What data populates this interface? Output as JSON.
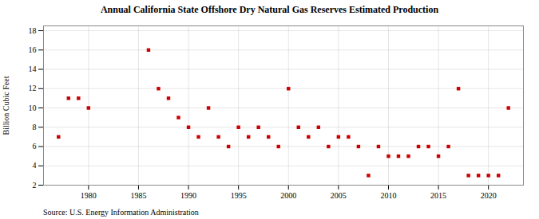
{
  "chart_data": {
    "type": "scatter",
    "title": "Annual California State Offshore Dry Natural Gas Reserves Estimated Production",
    "ylabel": "Billion Cubic Feet",
    "source": "Source: U.S. Energy Information Administration",
    "x": [
      1977,
      1978,
      1979,
      1980,
      1986,
      1987,
      1988,
      1989,
      1990,
      1991,
      1992,
      1993,
      1994,
      1995,
      1996,
      1997,
      1998,
      1999,
      2000,
      2001,
      2002,
      2003,
      2004,
      2005,
      2006,
      2007,
      2008,
      2009,
      2010,
      2011,
      2012,
      2013,
      2014,
      2015,
      2016,
      2017,
      2018,
      2019,
      2020,
      2021,
      2022
    ],
    "values": [
      7,
      11,
      11,
      10,
      16,
      12,
      11,
      9,
      8,
      7,
      10,
      7,
      6,
      8,
      7,
      8,
      7,
      6,
      12,
      8,
      7,
      8,
      6,
      7,
      7,
      6,
      3,
      6,
      5,
      5,
      5,
      6,
      6,
      5,
      6,
      12,
      3,
      3,
      3,
      3,
      10
    ],
    "color": "#cc0000",
    "marker": "square",
    "xlim": [
      1975.5,
      2023.5
    ],
    "ylim": [
      2,
      18.5
    ],
    "xticks": [
      1980,
      1985,
      1990,
      1995,
      2000,
      2005,
      2010,
      2015,
      2020
    ],
    "yticks": [
      2,
      4,
      6,
      8,
      10,
      12,
      14,
      16,
      18
    ],
    "grid": true
  }
}
